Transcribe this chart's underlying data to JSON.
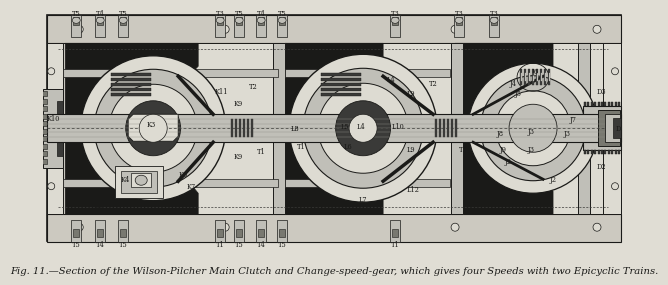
{
  "caption": "Fig. 11.—Section of the Wilson-Pilcher Main Clutch and Change-speed-gear, which gives four Speeds with two Epicyclic Trains.",
  "caption_fontsize": 7.2,
  "bg_light": "#e0ddd4",
  "bg_mid": "#c8c5bc",
  "bg_dark": "#a0a098",
  "black": "#1a1a18",
  "dark_gray": "#3a3a38",
  "mid_gray": "#787870",
  "light_gray": "#c0bfb8",
  "white_ish": "#dddbd2",
  "panel_bg": "#d4d1c8",
  "outer_bg": "#ccc9c0",
  "label_fs": 4.8,
  "small_label_fs": 4.2,
  "top_bolts_left": [
    [
      0.058,
      "T5"
    ],
    [
      0.098,
      "T4"
    ],
    [
      0.138,
      "T5"
    ]
  ],
  "top_bolts_c1": [
    [
      0.305,
      "T3"
    ],
    [
      0.338,
      "T5"
    ],
    [
      0.375,
      "T4"
    ],
    [
      0.412,
      "T5"
    ]
  ],
  "top_bolts_c2": [
    [
      0.605,
      "T3"
    ],
    [
      0.715,
      "T3"
    ],
    [
      0.775,
      "T3"
    ]
  ],
  "bot_bolts_left": [
    [
      0.058,
      "T5"
    ],
    [
      0.098,
      "T4"
    ],
    [
      0.138,
      "T5"
    ]
  ],
  "bot_bolts_c1": [
    [
      0.305,
      "T1"
    ],
    [
      0.338,
      "T5"
    ],
    [
      0.375,
      "T4"
    ],
    [
      0.412,
      "T5"
    ]
  ],
  "bot_bolts_c2": [
    [
      0.605,
      "T1"
    ]
  ]
}
